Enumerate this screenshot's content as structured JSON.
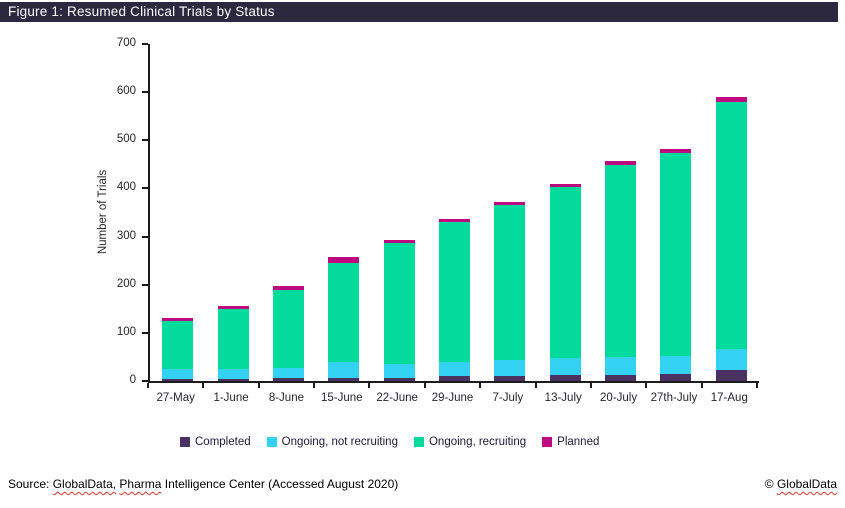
{
  "title_bar": {
    "text": "Figure 1: Resumed Clinical Trials by Status",
    "bg_color": "#2B2840",
    "text_color": "#FFFFFF"
  },
  "chart_data": {
    "type": "bar",
    "stacked": true,
    "ylabel": "Number of Trials",
    "xlabel": "",
    "ylim": [
      0,
      700
    ],
    "yticks": [
      0,
      100,
      200,
      300,
      400,
      500,
      600,
      700
    ],
    "grid": false,
    "legend_position": "bottom",
    "categories": [
      "27-May",
      "1-June",
      "8-June",
      "15-June",
      "22-June",
      "29-June",
      "7-July",
      "13-July",
      "20-July",
      "27th-July",
      "17-Aug"
    ],
    "series": [
      {
        "name": "Completed",
        "color": "#4A3363",
        "values": [
          4,
          4,
          7,
          6,
          7,
          10,
          10,
          12,
          12,
          15,
          22
        ]
      },
      {
        "name": "Ongoing, not recruiting",
        "color": "#33D1F2",
        "values": [
          20,
          22,
          21,
          33,
          28,
          29,
          33,
          35,
          37,
          38,
          45
        ]
      },
      {
        "name": "Ongoing, recruiting",
        "color": "#02DB9B",
        "values": [
          100,
          123,
          162,
          206,
          252,
          291,
          322,
          355,
          399,
          421,
          512
        ]
      },
      {
        "name": "Planned",
        "color": "#BE0A80",
        "values": [
          6,
          7,
          7,
          12,
          6,
          7,
          6,
          8,
          9,
          9,
          12
        ]
      }
    ],
    "totals": [
      130,
      156,
      197,
      257,
      293,
      337,
      371,
      410,
      457,
      483,
      591
    ],
    "axis_color": "#1C1C1C"
  },
  "footer": {
    "spellcheck_color": "#DE3B2E",
    "source_segments": [
      {
        "text": "Source: ",
        "squiggly": false
      },
      {
        "text": "GlobalData,",
        "squiggly": true
      },
      {
        "text": " ",
        "squiggly": false
      },
      {
        "text": "Pharma",
        "squiggly": true
      },
      {
        "text": " Intelligence Center (Accessed August 2020)",
        "squiggly": false
      }
    ],
    "copyright_segments": [
      {
        "text": "© ",
        "squiggly": false
      },
      {
        "text": "GlobalData",
        "squiggly": true
      }
    ]
  }
}
